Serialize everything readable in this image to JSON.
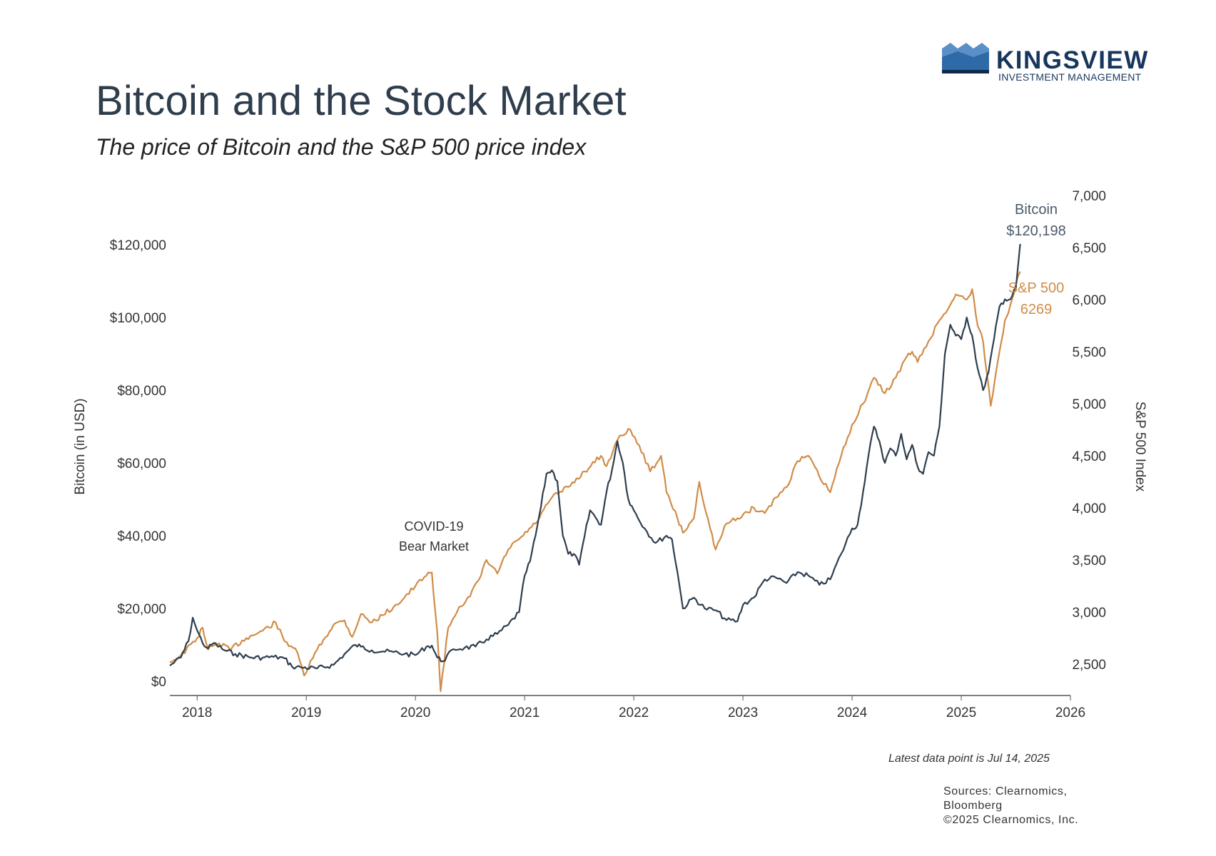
{
  "title": "Bitcoin and the Stock Market",
  "subtitle": "The price of Bitcoin and the S&P 500 price index",
  "logo": {
    "brand": "KINGSVIEW",
    "tagline": "INVESTMENT MANAGEMENT"
  },
  "footer": {
    "latest_note": "Latest data point is Jul 14, 2025",
    "sources_line1": "Sources: Clearnomics,",
    "sources_line2": "Bloomberg",
    "copyright": "©2025 Clearnomics, Inc."
  },
  "chart_data": {
    "type": "line",
    "title": "Bitcoin and the Stock Market",
    "subtitle": "The price of Bitcoin and the S&P 500 price index",
    "x_ticks": [
      "2018",
      "2019",
      "2020",
      "2021",
      "2022",
      "2023",
      "2024",
      "2025",
      "2026"
    ],
    "xlim": [
      2017.75,
      2026.0
    ],
    "grid": false,
    "y_left": {
      "label": "Bitcoin (in USD)",
      "range": [
        0,
        120000
      ],
      "ticks": [
        "$0",
        "$20,000",
        "$40,000",
        "$60,000",
        "$80,000",
        "$100,000",
        "$120,000"
      ],
      "tick_values": [
        0,
        20000,
        40000,
        60000,
        80000,
        100000,
        120000
      ]
    },
    "y_right": {
      "label": "S&P 500 Index",
      "range": [
        2500,
        7000
      ],
      "ticks": [
        "2,500",
        "3,000",
        "3,500",
        "4,000",
        "4,500",
        "5,000",
        "5,500",
        "6,000",
        "6,500",
        "7,000"
      ],
      "tick_values": [
        2500,
        3000,
        3500,
        4000,
        4500,
        5000,
        5500,
        6000,
        6500,
        7000
      ]
    },
    "annotations": {
      "covid_line1": "COVID-19",
      "covid_line2": "Bear Market",
      "btc_label": "Bitcoin",
      "btc_value": "$120,198",
      "spx_label": "S&P 500",
      "spx_value": "6269"
    },
    "colors": {
      "bitcoin": "#2e3e4e",
      "sp500": "#d08c48",
      "axis": "#555555",
      "text": "#333333"
    },
    "series": [
      {
        "name": "Bitcoin",
        "axis": "left",
        "x": [
          2017.75,
          2017.85,
          2017.92,
          2017.96,
          2018.0,
          2018.05,
          2018.1,
          2018.15,
          2018.25,
          2018.35,
          2018.5,
          2018.6,
          2018.7,
          2018.8,
          2018.87,
          2018.95,
          2019.1,
          2019.25,
          2019.35,
          2019.45,
          2019.5,
          2019.6,
          2019.7,
          2019.8,
          2019.9,
          2020.0,
          2020.1,
          2020.15,
          2020.2,
          2020.25,
          2020.35,
          2020.45,
          2020.55,
          2020.65,
          2020.75,
          2020.85,
          2020.95,
          2021.0,
          2021.05,
          2021.1,
          2021.15,
          2021.2,
          2021.25,
          2021.3,
          2021.35,
          2021.4,
          2021.45,
          2021.5,
          2021.55,
          2021.6,
          2021.65,
          2021.7,
          2021.75,
          2021.8,
          2021.85,
          2021.9,
          2021.95,
          2022.0,
          2022.1,
          2022.2,
          2022.3,
          2022.35,
          2022.4,
          2022.45,
          2022.55,
          2022.65,
          2022.75,
          2022.85,
          2022.95,
          2023.0,
          2023.1,
          2023.2,
          2023.3,
          2023.4,
          2023.5,
          2023.6,
          2023.7,
          2023.8,
          2023.9,
          2024.0,
          2024.05,
          2024.1,
          2024.15,
          2024.2,
          2024.25,
          2024.3,
          2024.35,
          2024.4,
          2024.45,
          2024.5,
          2024.55,
          2024.6,
          2024.65,
          2024.7,
          2024.75,
          2024.8,
          2024.85,
          2024.9,
          2024.95,
          2025.0,
          2025.05,
          2025.1,
          2025.15,
          2025.2,
          2025.25,
          2025.3,
          2025.35,
          2025.4,
          2025.45,
          2025.5,
          2025.54
        ],
        "values": [
          4300,
          6500,
          11000,
          17500,
          14000,
          10500,
          9000,
          10500,
          8500,
          7500,
          6500,
          6500,
          6700,
          6300,
          4000,
          3800,
          3500,
          4500,
          7500,
          10000,
          9500,
          8500,
          8200,
          8000,
          7500,
          7200,
          9500,
          9800,
          6500,
          5500,
          8800,
          9200,
          9500,
          11500,
          13000,
          15500,
          19000,
          29000,
          33000,
          40000,
          48000,
          57000,
          58000,
          55000,
          40000,
          35000,
          35000,
          32000,
          40000,
          47000,
          45000,
          43000,
          52000,
          58000,
          66000,
          60000,
          50000,
          47000,
          42000,
          38000,
          40000,
          39000,
          30000,
          20000,
          23000,
          20000,
          19500,
          16800,
          16500,
          21000,
          23000,
          28000,
          28500,
          27000,
          30000,
          29000,
          26500,
          28000,
          35000,
          42000,
          43000,
          52000,
          62000,
          70000,
          66000,
          60000,
          64000,
          62000,
          68000,
          61000,
          65000,
          59000,
          57000,
          63000,
          62000,
          70000,
          90000,
          98000,
          95000,
          94000,
          100000,
          95000,
          86000,
          80000,
          85000,
          94000,
          103000,
          105000,
          105000,
          108000,
          120198
        ]
      },
      {
        "name": "S&P 500",
        "axis": "right",
        "x": [
          2017.75,
          2017.85,
          2018.0,
          2018.05,
          2018.1,
          2018.2,
          2018.3,
          2018.45,
          2018.6,
          2018.72,
          2018.8,
          2018.9,
          2018.98,
          2019.1,
          2019.25,
          2019.35,
          2019.42,
          2019.5,
          2019.6,
          2019.7,
          2019.8,
          2019.9,
          2020.0,
          2020.1,
          2020.15,
          2020.2,
          2020.23,
          2020.3,
          2020.4,
          2020.5,
          2020.6,
          2020.65,
          2020.75,
          2020.85,
          2020.95,
          2021.1,
          2021.25,
          2021.4,
          2021.55,
          2021.7,
          2021.75,
          2021.85,
          2021.95,
          2022.05,
          2022.15,
          2022.25,
          2022.3,
          2022.4,
          2022.45,
          2022.55,
          2022.6,
          2022.7,
          2022.75,
          2022.85,
          2022.95,
          2023.1,
          2023.2,
          2023.3,
          2023.4,
          2023.5,
          2023.6,
          2023.7,
          2023.8,
          2023.9,
          2024.0,
          2024.1,
          2024.2,
          2024.3,
          2024.4,
          2024.5,
          2024.55,
          2024.6,
          2024.7,
          2024.8,
          2024.9,
          2024.95,
          2025.05,
          2025.1,
          2025.15,
          2025.2,
          2025.27,
          2025.35,
          2025.4,
          2025.45,
          2025.5,
          2025.54
        ],
        "values": [
          2520,
          2580,
          2750,
          2850,
          2640,
          2700,
          2640,
          2750,
          2820,
          2900,
          2720,
          2650,
          2390,
          2640,
          2880,
          2920,
          2760,
          2980,
          2900,
          2970,
          3050,
          3140,
          3250,
          3350,
          3380,
          2800,
          2240,
          2850,
          3050,
          3150,
          3350,
          3500,
          3370,
          3600,
          3700,
          3850,
          4100,
          4200,
          4350,
          4500,
          4400,
          4650,
          4760,
          4600,
          4350,
          4500,
          4150,
          3900,
          3760,
          3900,
          4250,
          3800,
          3600,
          3850,
          3900,
          4000,
          3950,
          4100,
          4200,
          4450,
          4500,
          4300,
          4150,
          4500,
          4800,
          5000,
          5250,
          5100,
          5250,
          5450,
          5500,
          5400,
          5600,
          5800,
          5950,
          6050,
          6000,
          6100,
          5750,
          5600,
          4980,
          5500,
          5800,
          5950,
          6150,
          6269
        ]
      }
    ]
  }
}
